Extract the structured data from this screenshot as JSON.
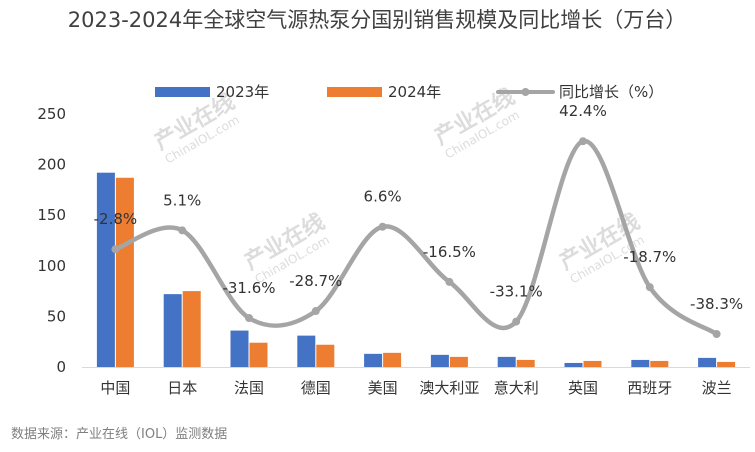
{
  "chart_data": {
    "type": "bar",
    "title": "2023-2024年全球空气源热泵分国别销售规模及同比增长（万台）",
    "categories": [
      "中国",
      "日本",
      "法国",
      "德国",
      "美国",
      "澳大利亚",
      "意大利",
      "英国",
      "西班牙",
      "波兰"
    ],
    "series": [
      {
        "name": "2023年",
        "type": "bar",
        "color": "#4472C4",
        "values": [
          192,
          72,
          36,
          31,
          13,
          12,
          10,
          4,
          7,
          9
        ]
      },
      {
        "name": "2024年",
        "type": "bar",
        "color": "#ED7D31",
        "values": [
          187,
          75,
          24,
          22,
          14,
          10,
          7,
          6,
          6,
          5
        ]
      },
      {
        "name": "同比增长（%）",
        "type": "line",
        "color": "#A5A5A5",
        "values": [
          -2.8,
          5.1,
          -31.6,
          -28.7,
          6.6,
          -16.5,
          -33.1,
          42.4,
          -18.7,
          -38.3
        ],
        "labels": [
          "-2.8%",
          "5.1%",
          "-31.6%",
          "-28.7%",
          "6.6%",
          "-16.5%",
          "-33.1%",
          "42.4%",
          "-18.7%",
          "-38.3%"
        ]
      }
    ],
    "ylim": [
      0,
      250
    ],
    "yticks": [
      0,
      50,
      100,
      150,
      200,
      250
    ],
    "secondary_ylim": [
      -45,
      45
    ],
    "xlabel": "",
    "ylabel": "",
    "legend_position": "top",
    "grid": false
  },
  "source": "数据来源：产业在线（IOL）监测数据",
  "watermark": {
    "brand": "产业在线",
    "site": "ChinaIOL.com"
  }
}
